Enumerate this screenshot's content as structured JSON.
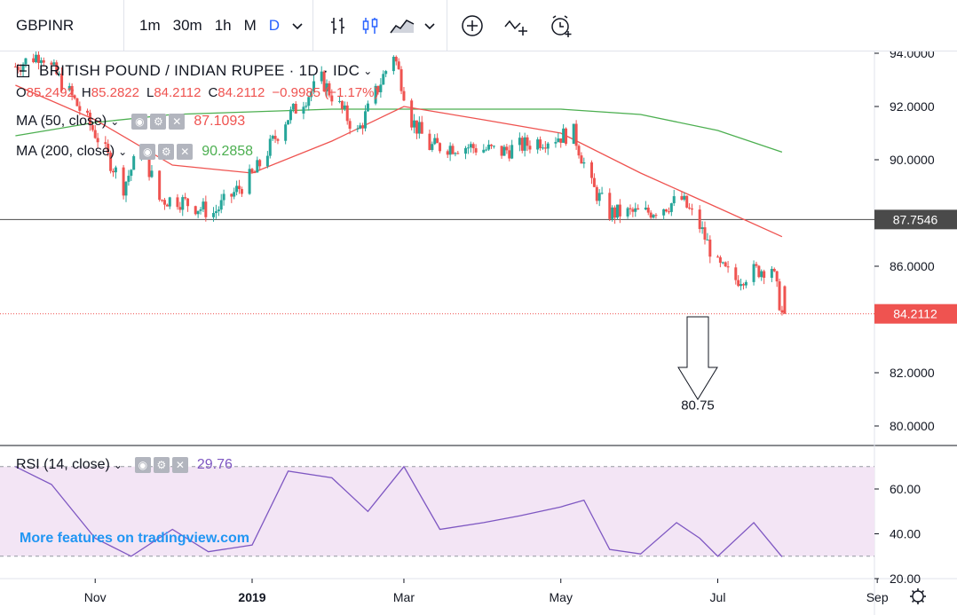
{
  "toolbar": {
    "symbol": "GBPINR",
    "intervals": [
      "1m",
      "30m",
      "1h",
      "M",
      "D"
    ],
    "active_interval": "D"
  },
  "legend": {
    "title": "BRITISH POUND / INDIAN RUPEE · 1D · IDC",
    "ohlc": {
      "O": "85.2492",
      "H": "85.2822",
      "L": "84.2112",
      "C": "84.2112",
      "change": "−0.9985 (−1.17%)"
    },
    "ma50": {
      "label": "MA (50, close)",
      "value": "87.1093"
    },
    "ma200": {
      "label": "MA (200, close)",
      "value": "90.2858"
    },
    "rsi": {
      "label": "RSI (14, close)",
      "value": "29.76"
    }
  },
  "watermark": "More features on tradingview.com",
  "annotation": {
    "target": "80.75"
  },
  "colors": {
    "up": "#26a69a",
    "down": "#ef5350",
    "ma50": "#ef5350",
    "ma200": "#4caf50",
    "rsi": "#7e57c2",
    "rsi_band": "#f3e5f5",
    "price_label": "#ef5350",
    "level_label": "#4a4a4a"
  },
  "chart_data": [
    {
      "type": "line",
      "title": "BRITISH POUND / INDIAN RUPEE · 1D · IDC",
      "x_tick_labels": [
        "Nov",
        "2019",
        "Mar",
        "May",
        "Jul",
        "Sep"
      ],
      "y_tick_labels": [
        "94.0000",
        "92.0000",
        "90.0000",
        "86.0000",
        "82.0000",
        "80.0000"
      ],
      "ylim": [
        79.5,
        94.0
      ],
      "price_labels": [
        {
          "value": 87.7546,
          "label": "87.7546"
        },
        {
          "value": 84.2112,
          "label": "84.2112"
        }
      ],
      "series": [
        {
          "name": "GBPINR close",
          "x": [
            "2018-10-01",
            "2018-10-11",
            "2018-10-22",
            "2018-11-01",
            "2018-11-12",
            "2018-11-19",
            "2018-11-26",
            "2018-12-03",
            "2018-12-17",
            "2019-01-02",
            "2019-01-14",
            "2019-01-28",
            "2019-02-11",
            "2019-02-25",
            "2019-03-04",
            "2019-03-11",
            "2019-03-25",
            "2019-04-08",
            "2019-04-22",
            "2019-05-06",
            "2019-05-13",
            "2019-05-20",
            "2019-06-03",
            "2019-06-17",
            "2019-06-24",
            "2019-07-01",
            "2019-07-08",
            "2019-07-15",
            "2019-07-22",
            "2019-07-26"
          ],
          "values": [
            93.5,
            94.0,
            92.5,
            91.0,
            89.0,
            90.5,
            88.5,
            88.5,
            88.0,
            89.5,
            91.5,
            93.0,
            91.0,
            94.0,
            91.5,
            90.5,
            90.5,
            90.3,
            90.7,
            91.0,
            89.0,
            88.0,
            88.0,
            88.5,
            87.5,
            86.0,
            85.5,
            85.8,
            86.0,
            84.2
          ]
        },
        {
          "name": "MA (50, close)",
          "x": [
            "2018-10-01",
            "2018-11-01",
            "2018-12-01",
            "2019-01-01",
            "2019-02-01",
            "2019-03-01",
            "2019-04-01",
            "2019-05-01",
            "2019-06-01",
            "2019-07-01",
            "2019-07-26"
          ],
          "values": [
            92.8,
            91.5,
            89.8,
            89.5,
            90.7,
            92.0,
            91.5,
            91.0,
            89.5,
            88.2,
            87.1093
          ]
        },
        {
          "name": "MA (200, close)",
          "x": [
            "2018-10-01",
            "2018-11-01",
            "2018-12-01",
            "2019-01-01",
            "2019-02-01",
            "2019-03-01",
            "2019-04-01",
            "2019-05-01",
            "2019-06-01",
            "2019-07-01",
            "2019-07-26"
          ],
          "values": [
            90.9,
            91.4,
            91.7,
            91.8,
            91.9,
            91.9,
            91.9,
            91.9,
            91.7,
            91.1,
            90.2858
          ]
        }
      ]
    },
    {
      "type": "line",
      "title": "RSI (14, close)",
      "y_tick_labels": [
        "60.00",
        "40.00",
        "20.00"
      ],
      "ylim": [
        20,
        75
      ],
      "band": [
        30,
        70
      ],
      "series": [
        {
          "name": "RSI (14, close)",
          "x": [
            "2018-10-01",
            "2018-10-15",
            "2018-11-01",
            "2018-11-15",
            "2018-12-01",
            "2018-12-15",
            "2019-01-01",
            "2019-01-15",
            "2019-02-01",
            "2019-02-15",
            "2019-03-01",
            "2019-03-15",
            "2019-04-01",
            "2019-04-15",
            "2019-05-01",
            "2019-05-10",
            "2019-05-20",
            "2019-06-01",
            "2019-06-15",
            "2019-06-24",
            "2019-07-01",
            "2019-07-15",
            "2019-07-26"
          ],
          "values": [
            70,
            62,
            38,
            30,
            42,
            32,
            35,
            68,
            65,
            50,
            70,
            42,
            45,
            48,
            52,
            55,
            33,
            31,
            45,
            38,
            30,
            45,
            29.76
          ]
        }
      ]
    }
  ]
}
